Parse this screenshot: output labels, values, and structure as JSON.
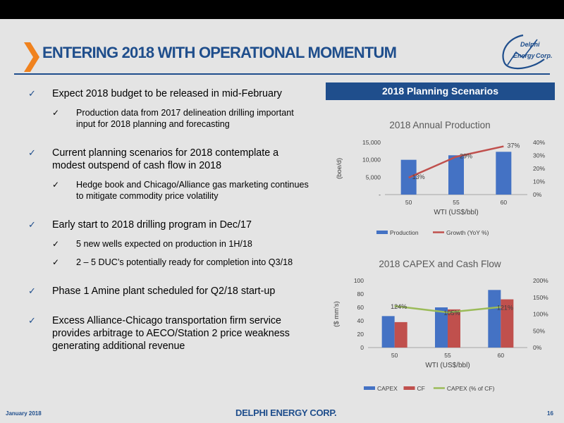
{
  "header": {
    "title": "ENTERING 2018 WITH OPERATIONAL MOMENTUM",
    "logo_text": "Delphi Energy Corp."
  },
  "bullets": [
    {
      "text": "Expect 2018 budget to be released in mid-February",
      "subs": [
        "Production data from 2017 delineation drilling important input for 2018 planning and forecasting"
      ]
    },
    {
      "text": "Current planning scenarios for 2018 contemplate a modest outspend of cash flow in 2018",
      "subs": [
        "Hedge book and Chicago/Alliance gas marketing continues to mitigate commodity price volatility"
      ]
    },
    {
      "text": "Early start to 2018 drilling program in Dec/17",
      "subs": [
        "5 new wells expected on production in 1H/18",
        "2 – 5 DUC’s potentially ready for completion into Q3/18"
      ]
    },
    {
      "text": "Phase 1 Amine plant scheduled for Q2/18 start-up",
      "subs": []
    },
    {
      "text": "Excess Alliance-Chicago transportation firm service provides arbitrage to AECO/Station 2 price weakness generating additional revenue",
      "subs": []
    }
  ],
  "panel": {
    "title": "2018 Planning Scenarios"
  },
  "chart_data": [
    {
      "type": "bar",
      "title": "2018 Annual Production",
      "categories": [
        "50",
        "55",
        "60"
      ],
      "xlabel": "WTI (US$/bbl)",
      "ylabel": "(boe/d)",
      "ylim": [
        0,
        15000
      ],
      "yticks": [
        "-",
        "5,000",
        "10,000",
        "15,000"
      ],
      "y2lim": [
        0,
        40
      ],
      "y2ticks": [
        "0%",
        "10%",
        "20%",
        "30%",
        "40%"
      ],
      "series": [
        {
          "name": "Production",
          "type": "bar",
          "axis": "left",
          "color": "#4472c4",
          "values": [
            10000,
            11300,
            12300
          ]
        },
        {
          "name": "Growth (YoY %)",
          "type": "line",
          "axis": "right",
          "color": "#c0504d",
          "values": [
            13,
            29,
            37
          ],
          "labels": [
            "13%",
            "29%",
            "37%"
          ]
        }
      ],
      "legend": "bottom"
    },
    {
      "type": "bar",
      "title": "2018 CAPEX and Cash Flow",
      "categories": [
        "50",
        "55",
        "60"
      ],
      "xlabel": "WTI (US$/bbl)",
      "ylabel": "($ mm's)",
      "ylim": [
        0,
        100
      ],
      "yticks": [
        "0",
        "20",
        "40",
        "60",
        "80",
        "100"
      ],
      "y2lim": [
        0,
        200
      ],
      "y2ticks": [
        "0%",
        "50%",
        "100%",
        "150%",
        "200%"
      ],
      "series": [
        {
          "name": "CAPEX",
          "type": "bar",
          "axis": "left",
          "color": "#4472c4",
          "values": [
            47,
            60,
            86
          ]
        },
        {
          "name": "CF",
          "type": "bar",
          "axis": "left",
          "color": "#c0504d",
          "values": [
            38,
            57,
            72
          ]
        },
        {
          "name": "CAPEX (% of CF)",
          "type": "line",
          "axis": "right",
          "color": "#9bbb59",
          "values": [
            124,
            105,
            121
          ],
          "labels": [
            "124%",
            "105%",
            "121%"
          ]
        }
      ],
      "legend": "bottom"
    }
  ],
  "footer": {
    "date": "January 2018",
    "brand": "DELPHI ENERGY CORP.",
    "page": "16"
  }
}
